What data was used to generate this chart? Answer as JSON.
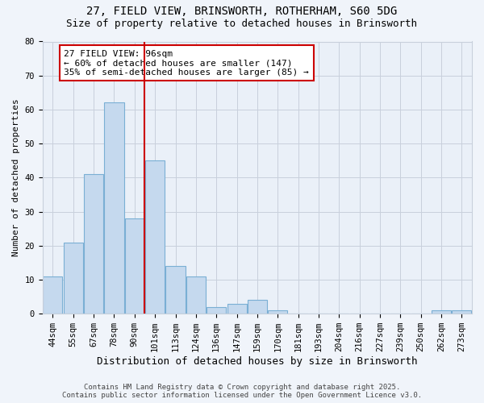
{
  "title": "27, FIELD VIEW, BRINSWORTH, ROTHERHAM, S60 5DG",
  "subtitle": "Size of property relative to detached houses in Brinsworth",
  "xlabel": "Distribution of detached houses by size in Brinsworth",
  "ylabel": "Number of detached properties",
  "bar_labels": [
    "44sqm",
    "55sqm",
    "67sqm",
    "78sqm",
    "90sqm",
    "101sqm",
    "113sqm",
    "124sqm",
    "136sqm",
    "147sqm",
    "159sqm",
    "170sqm",
    "181sqm",
    "193sqm",
    "204sqm",
    "216sqm",
    "227sqm",
    "239sqm",
    "250sqm",
    "262sqm",
    "273sqm"
  ],
  "bar_values": [
    11,
    21,
    41,
    62,
    28,
    45,
    14,
    11,
    2,
    3,
    4,
    1,
    0,
    0,
    0,
    0,
    0,
    0,
    0,
    1,
    1
  ],
  "bar_color": "#c5d9ee",
  "bar_edgecolor": "#7aafd4",
  "vline_x": 4.5,
  "vline_color": "#cc0000",
  "annotation_title": "27 FIELD VIEW: 96sqm",
  "annotation_line1": "← 60% of detached houses are smaller (147)",
  "annotation_line2": "35% of semi-detached houses are larger (85) →",
  "annotation_box_edgecolor": "#cc0000",
  "ylim": [
    0,
    80
  ],
  "yticks": [
    0,
    10,
    20,
    30,
    40,
    50,
    60,
    70,
    80
  ],
  "background_color": "#f0f4fa",
  "plot_bg_color": "#eaf0f8",
  "grid_color": "#c8d0dc",
  "footer1": "Contains HM Land Registry data © Crown copyright and database right 2025.",
  "footer2": "Contains public sector information licensed under the Open Government Licence v3.0.",
  "title_fontsize": 10,
  "subtitle_fontsize": 9,
  "xlabel_fontsize": 9,
  "ylabel_fontsize": 8,
  "tick_fontsize": 7.5,
  "annotation_fontsize": 8,
  "footer_fontsize": 6.5
}
